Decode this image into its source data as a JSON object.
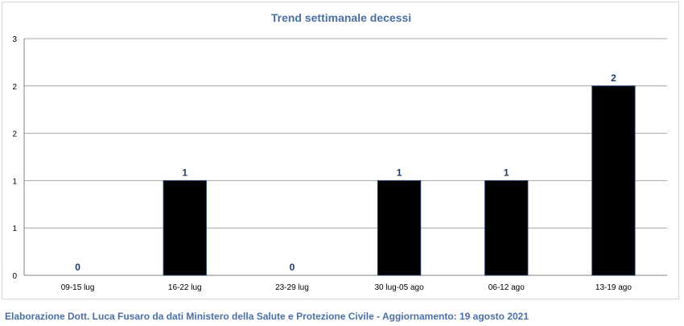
{
  "chart_data": {
    "type": "bar",
    "title": "Trend settimanale decessi",
    "categories": [
      "09-15 lug",
      "16-22 lug",
      "23-29 lug",
      "30 lug-05 ago",
      "06-12 ago",
      "13-19 ago"
    ],
    "values": [
      0,
      1,
      0,
      1,
      1,
      2
    ],
    "data_labels": [
      "0",
      "1",
      "0",
      "1",
      "1",
      "2"
    ],
    "y_tick_labels": [
      "0",
      "1",
      "1",
      "2",
      "2",
      "3"
    ],
    "ylim": [
      0,
      2.5
    ],
    "xlabel": "",
    "ylabel": "",
    "grid": true,
    "legend": "none",
    "colors": {
      "bar_fill": "#000000",
      "bar_stroke": "#1f3864",
      "title": "#4a6fa5",
      "data_label": "#1f3864",
      "gridline": "#a6a6a6",
      "caption": "#4a6fa5"
    }
  },
  "caption": "Elaborazione Dott. Luca Fusaro da dati Ministero della Salute e Protezione Civile - Aggiornamento: 19 agosto 2021"
}
